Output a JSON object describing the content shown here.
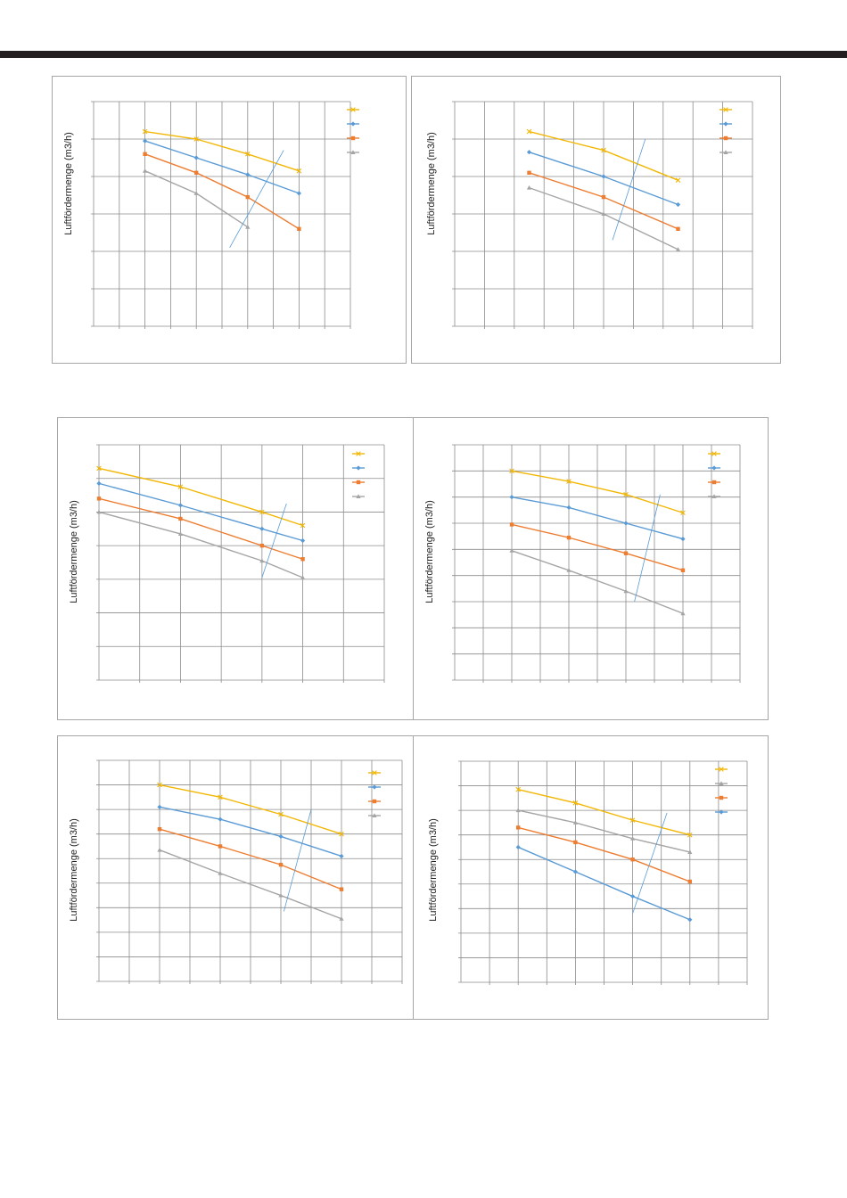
{
  "page": {
    "colors": {
      "bar": "#231f20",
      "grid": "#8c8c8c",
      "panel_border": "#a6a6a6"
    }
  },
  "chart_data": [
    {
      "type": "line",
      "ylabel": "Luftfördermenge (m3/h)",
      "xlim": [
        0,
        10
      ],
      "ylim": [
        0,
        6
      ],
      "grid": true,
      "legend_position": "top-right",
      "series": [
        {
          "marker": "x",
          "color": "#f2b705",
          "x": [
            2,
            4,
            6,
            8
          ],
          "y": [
            5.2,
            5.0,
            4.6,
            4.15
          ]
        },
        {
          "marker": "diamond",
          "color": "#5b9bd5",
          "x": [
            2,
            4,
            6,
            8
          ],
          "y": [
            4.95,
            4.5,
            4.05,
            3.55
          ]
        },
        {
          "marker": "square",
          "color": "#ed7d31",
          "x": [
            2,
            4,
            6,
            8
          ],
          "y": [
            4.6,
            4.1,
            3.45,
            2.6
          ]
        },
        {
          "marker": "triangle",
          "color": "#a5a5a5",
          "x": [
            2,
            4,
            6
          ],
          "y": [
            4.15,
            3.55,
            2.65
          ]
        }
      ],
      "overlay_line": {
        "color": "#5b9bd5",
        "x": [
          5.3,
          7.4
        ],
        "y": [
          2.1,
          4.7
        ]
      }
    },
    {
      "type": "line",
      "ylabel": "Luftfördermenge (m3/h)",
      "xlim": [
        0,
        10
      ],
      "ylim": [
        0,
        6
      ],
      "grid": true,
      "legend_position": "top-right",
      "series": [
        {
          "marker": "x",
          "color": "#f2b705",
          "x": [
            2.5,
            5,
            7.5
          ],
          "y": [
            5.2,
            4.7,
            3.9
          ]
        },
        {
          "marker": "diamond",
          "color": "#5b9bd5",
          "x": [
            2.5,
            5,
            7.5
          ],
          "y": [
            4.65,
            4.0,
            3.25
          ]
        },
        {
          "marker": "square",
          "color": "#ed7d31",
          "x": [
            2.5,
            5,
            7.5
          ],
          "y": [
            4.1,
            3.45,
            2.6
          ]
        },
        {
          "marker": "triangle",
          "color": "#a5a5a5",
          "x": [
            2.5,
            5,
            7.5
          ],
          "y": [
            3.7,
            3.0,
            2.05
          ]
        }
      ],
      "overlay_line": {
        "color": "#5b9bd5",
        "x": [
          5.3,
          6.4
        ],
        "y": [
          2.3,
          5.0
        ]
      }
    },
    {
      "type": "line",
      "ylabel": "Luftfördermenge (m3/h)",
      "xlim": [
        0,
        7
      ],
      "ylim": [
        0,
        7
      ],
      "grid": true,
      "legend_position": "top-right",
      "series": [
        {
          "marker": "x",
          "color": "#f2b705",
          "x": [
            0,
            2,
            4,
            5
          ],
          "y": [
            6.3,
            5.75,
            5.0,
            4.6
          ]
        },
        {
          "marker": "diamond",
          "color": "#5b9bd5",
          "x": [
            0,
            2,
            4,
            5
          ],
          "y": [
            5.85,
            5.2,
            4.5,
            4.15
          ]
        },
        {
          "marker": "square",
          "color": "#ed7d31",
          "x": [
            0,
            2,
            4,
            5
          ],
          "y": [
            5.4,
            4.8,
            4.0,
            3.6
          ]
        },
        {
          "marker": "triangle",
          "color": "#a5a5a5",
          "x": [
            0,
            2,
            4,
            5
          ],
          "y": [
            5.0,
            4.35,
            3.55,
            3.05
          ]
        }
      ],
      "overlay_line": {
        "color": "#5b9bd5",
        "x": [
          4.0,
          4.6
        ],
        "y": [
          3.05,
          5.25
        ]
      }
    },
    {
      "type": "line",
      "ylabel": "Luftfördermenge (m3/h)",
      "xlim": [
        0,
        10
      ],
      "ylim": [
        0,
        9
      ],
      "grid": true,
      "legend_position": "top-right",
      "series": [
        {
          "marker": "x",
          "color": "#f2b705",
          "x": [
            2,
            4,
            6,
            8
          ],
          "y": [
            8.0,
            7.6,
            7.1,
            6.4
          ]
        },
        {
          "marker": "diamond",
          "color": "#5b9bd5",
          "x": [
            2,
            4,
            6,
            8
          ],
          "y": [
            7.0,
            6.6,
            6.0,
            5.4
          ]
        },
        {
          "marker": "square",
          "color": "#ed7d31",
          "x": [
            2,
            4,
            6,
            8
          ],
          "y": [
            5.95,
            5.45,
            4.85,
            4.2
          ]
        },
        {
          "marker": "triangle",
          "color": "#a5a5a5",
          "x": [
            2,
            4,
            6,
            8
          ],
          "y": [
            4.95,
            4.2,
            3.4,
            2.55
          ]
        }
      ],
      "overlay_line": {
        "color": "#5b9bd5",
        "x": [
          6.3,
          7.2
        ],
        "y": [
          3.0,
          7.1
        ]
      }
    },
    {
      "type": "line",
      "ylabel": "Luftfördermenge (m3/h)",
      "xlim": [
        0,
        10
      ],
      "ylim": [
        0,
        9
      ],
      "grid": true,
      "legend_position": "top-right",
      "series": [
        {
          "marker": "x",
          "color": "#f2b705",
          "x": [
            2,
            4,
            6,
            8
          ],
          "y": [
            8.0,
            7.5,
            6.8,
            6.0
          ]
        },
        {
          "marker": "diamond",
          "color": "#5b9bd5",
          "x": [
            2,
            4,
            6,
            8
          ],
          "y": [
            7.1,
            6.6,
            5.9,
            5.1
          ]
        },
        {
          "marker": "square",
          "color": "#ed7d31",
          "x": [
            2,
            4,
            6,
            8
          ],
          "y": [
            6.2,
            5.5,
            4.75,
            3.75
          ]
        },
        {
          "marker": "triangle",
          "color": "#a5a5a5",
          "x": [
            2,
            4,
            6,
            8
          ],
          "y": [
            5.35,
            4.4,
            3.5,
            2.55
          ]
        }
      ],
      "overlay_line": {
        "color": "#5b9bd5",
        "x": [
          6.1,
          7.0
        ],
        "y": [
          2.85,
          7.0
        ]
      }
    },
    {
      "type": "line",
      "ylabel": "Luftfördermenge (m3/h)",
      "xlim": [
        0,
        10
      ],
      "ylim": [
        0,
        9
      ],
      "grid": true,
      "legend_position": "top-right",
      "series": [
        {
          "marker": "x",
          "color": "#f2b705",
          "x": [
            2,
            4,
            6,
            8
          ],
          "y": [
            7.85,
            7.3,
            6.6,
            6.0
          ]
        },
        {
          "marker": "triangle",
          "color": "#a5a5a5",
          "x": [
            2,
            4,
            6,
            8
          ],
          "y": [
            7.0,
            6.5,
            5.85,
            5.3
          ]
        },
        {
          "marker": "square",
          "color": "#ed7d31",
          "x": [
            2,
            4,
            6,
            8
          ],
          "y": [
            6.3,
            5.7,
            5.0,
            4.1
          ]
        },
        {
          "marker": "diamond",
          "color": "#5b9bd5",
          "x": [
            2,
            4,
            6,
            8
          ],
          "y": [
            5.5,
            4.5,
            3.5,
            2.55
          ]
        }
      ],
      "overlay_line": {
        "color": "#5b9bd5",
        "x": [
          6.0,
          7.2
        ],
        "y": [
          2.8,
          6.9
        ]
      }
    }
  ]
}
